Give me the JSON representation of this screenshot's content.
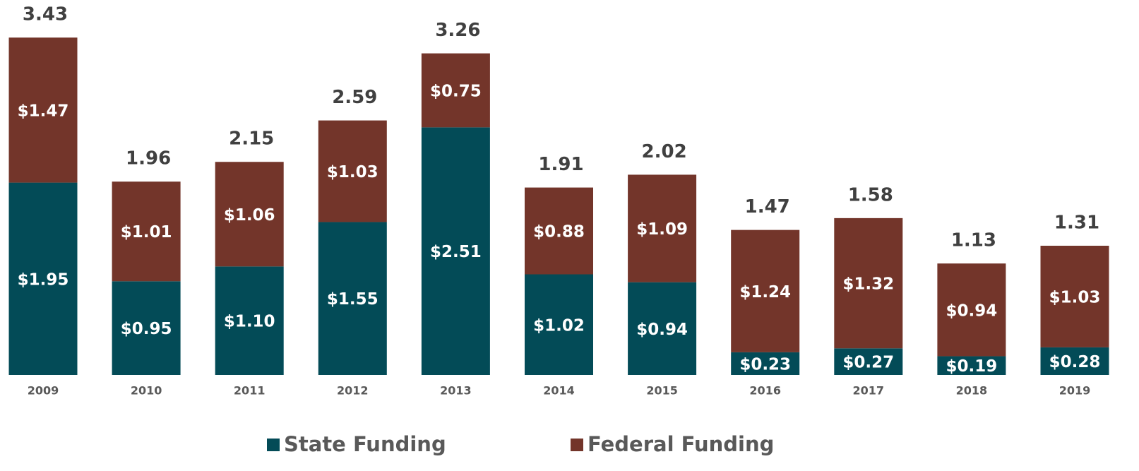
{
  "chart_data": {
    "type": "stacked_bar",
    "categories": [
      "2009",
      "2010",
      "2011",
      "2012",
      "2013",
      "2014",
      "2015",
      "2016",
      "2017",
      "2018",
      "2019"
    ],
    "series": [
      {
        "name": "State Funding",
        "color": "#034b57",
        "values": [
          1.95,
          0.95,
          1.1,
          1.55,
          2.51,
          1.02,
          0.94,
          0.23,
          0.27,
          0.19,
          0.28
        ],
        "value_labels": [
          "$1.95",
          "$0.95",
          "$1.10",
          "$1.55",
          "$2.51",
          "$1.02",
          "$0.94",
          "$0.23",
          "$0.27",
          "$0.19",
          "$0.28"
        ]
      },
      {
        "name": "Federal Funding",
        "color": "#73352a",
        "values": [
          1.47,
          1.01,
          1.06,
          1.03,
          0.75,
          0.88,
          1.09,
          1.24,
          1.32,
          0.94,
          1.03
        ],
        "value_labels": [
          "$1.47",
          "$1.01",
          "$1.06",
          "$1.03",
          "$0.75",
          "$0.88",
          "$1.09",
          "$1.24",
          "$1.32",
          "$0.94",
          "$1.03"
        ]
      }
    ],
    "totals": [
      3.43,
      1.96,
      2.15,
      2.59,
      3.26,
      1.91,
      2.02,
      1.47,
      1.58,
      1.13,
      1.31
    ],
    "total_labels": [
      "$3.43",
      "$1.96",
      "$2.15",
      "$2.59",
      "$3.26",
      "$1.91",
      "$2.02",
      "$1.47",
      "$1.58",
      "$1.13",
      "$1.31"
    ],
    "legend": "bottom"
  }
}
